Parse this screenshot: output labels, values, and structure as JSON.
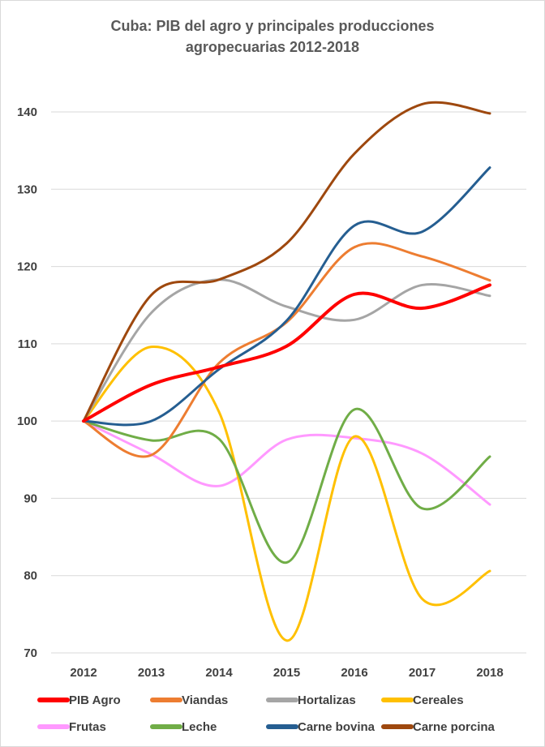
{
  "chart_data": {
    "type": "line",
    "title_lines": [
      "Cuba: PIB del agro y principales producciones",
      "agropecuarias 2012-2018"
    ],
    "xlabel": "",
    "ylabel": "",
    "x": [
      "2012",
      "2013",
      "2014",
      "2015",
      "2016",
      "2017",
      "2018"
    ],
    "ylim": [
      70,
      140
    ],
    "yticks": [
      70,
      80,
      90,
      100,
      110,
      120,
      130,
      140
    ],
    "grid": true,
    "legend_position": "bottom",
    "series": [
      {
        "name": "PIB Agro",
        "color": "#ff0000",
        "values": [
          100,
          104.7,
          107.0,
          109.7,
          116.4,
          114.6,
          117.6
        ]
      },
      {
        "name": "Viandas",
        "color": "#ed7d31",
        "values": [
          100,
          95.6,
          107.5,
          112.8,
          122.5,
          121.3,
          118.2
        ]
      },
      {
        "name": "Hortalizas",
        "color": "#a5a5a5",
        "values": [
          100,
          114.0,
          118.3,
          114.8,
          113.1,
          117.6,
          116.2
        ]
      },
      {
        "name": "Cereales",
        "color": "#ffc000",
        "values": [
          100,
          109.6,
          101.2,
          71.6,
          98.0,
          77.0,
          80.6
        ]
      },
      {
        "name": "Frutas",
        "color": "#ff99ff",
        "values": [
          100,
          95.7,
          91.6,
          97.6,
          97.8,
          95.8,
          89.2
        ]
      },
      {
        "name": "Leche",
        "color": "#70ad47",
        "values": [
          100,
          97.5,
          97.7,
          81.7,
          101.5,
          88.7,
          95.4
        ]
      },
      {
        "name": "Carne bovina",
        "color": "#255e91",
        "values": [
          100,
          100.0,
          106.7,
          113.0,
          125.3,
          124.5,
          132.8
        ]
      },
      {
        "name": "Carne porcina",
        "color": "#9e480e",
        "values": [
          100,
          116.3,
          118.3,
          123.0,
          134.6,
          141.0,
          139.8
        ]
      }
    ]
  }
}
